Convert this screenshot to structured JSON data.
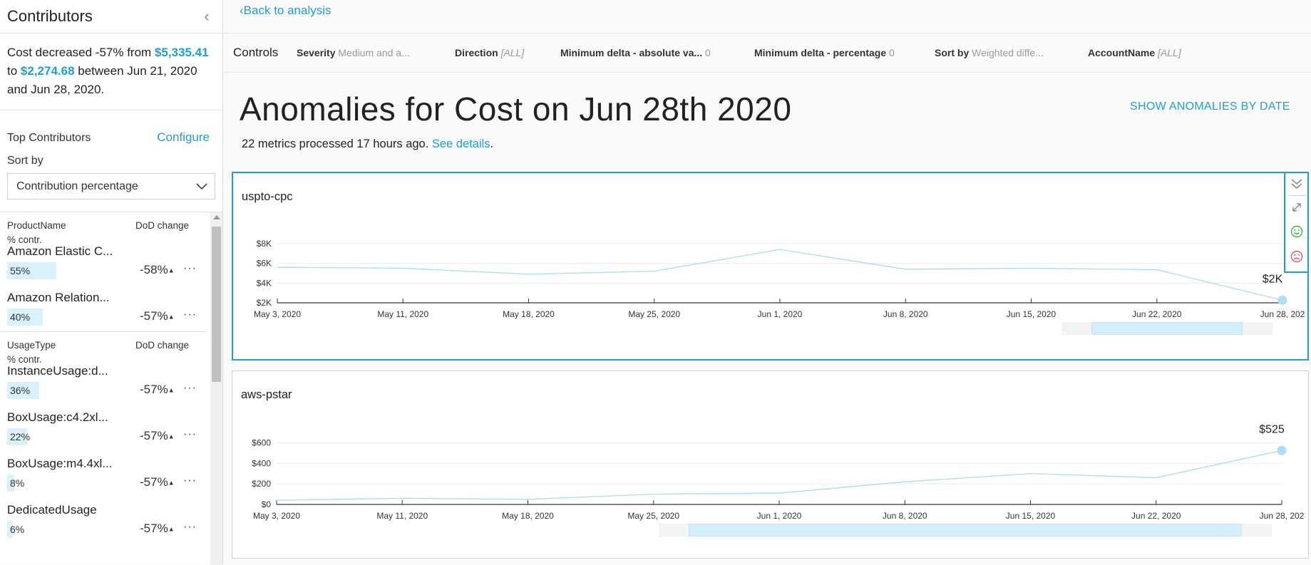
{
  "sidebar": {
    "title": "Contributors",
    "summary": {
      "line1_prefix": "Cost decreased -57% from ",
      "from_value": "$5,335.41",
      "line2_prefix": "to ",
      "to_value": "$2,274.68",
      "line2_suffix": " between Jun 21, 2020",
      "line3": "and Jun 28, 2020."
    },
    "top_contributors_label": "Top Contributors",
    "configure_label": "Configure",
    "sort_by_label": "Sort by",
    "sort_value": "Contribution percentage",
    "groups": [
      {
        "col1": "ProductName",
        "col1_sub": "% contr.",
        "col2": "DoD change",
        "items": [
          {
            "name": "Amazon Elastic C...",
            "pct": "55%",
            "pct_value": 55,
            "change": "-58%"
          },
          {
            "name": "Amazon Relation...",
            "pct": "40%",
            "pct_value": 40,
            "change": "-57%"
          }
        ]
      },
      {
        "col1": "UsageType",
        "col1_sub": "% contr.",
        "col2": "DoD change",
        "items": [
          {
            "name": "InstanceUsage:d...",
            "pct": "36%",
            "pct_value": 36,
            "change": "-57%"
          },
          {
            "name": "BoxUsage:c4.2xl...",
            "pct": "22%",
            "pct_value": 22,
            "change": "-57%"
          },
          {
            "name": "BoxUsage:m4.4xl...",
            "pct": "8%",
            "pct_value": 8,
            "change": "-57%"
          },
          {
            "name": "DedicatedUsage",
            "pct": "6%",
            "pct_value": 6,
            "change": "-57%"
          }
        ]
      }
    ]
  },
  "header": {
    "back_label": "Back to analysis"
  },
  "controls": {
    "title": "Controls",
    "items": [
      {
        "key": "Severity",
        "value": "Medium and a..."
      },
      {
        "key": "Direction",
        "value": "[ALL]"
      },
      {
        "key": "Minimum delta - absolute va...",
        "value": "0"
      },
      {
        "key": "Minimum delta - percentage",
        "value": "0"
      },
      {
        "key": "Sort by",
        "value": "Weighted diffe..."
      },
      {
        "key": "AccountName",
        "value": "[ALL]"
      }
    ]
  },
  "main": {
    "title": "Anomalies for Cost on Jun 28th 2020",
    "show_by_date": "SHOW ANOMALIES BY DATE",
    "subline_text": "22 metrics processed 17 hours ago. ",
    "see_details": "See details",
    "subline_end": "."
  },
  "colors": {
    "accent": "#1a9fd9",
    "line": "#a9e0f3",
    "range_fill": "#d4effb"
  },
  "chart_data": [
    {
      "type": "line",
      "title": "uspto-cpc",
      "x": [
        "May 3, 2020",
        "May 11, 2020",
        "May 18, 2020",
        "May 25, 2020",
        "Jun 1, 2020",
        "Jun 8, 2020",
        "Jun 15, 2020",
        "Jun 22, 2020",
        "Jun 28, 202"
      ],
      "values": [
        5600,
        5500,
        4900,
        5200,
        7400,
        5400,
        5500,
        5350,
        2270
      ],
      "y_ticks": [
        2000,
        4000,
        6000,
        8000
      ],
      "y_tick_labels": [
        "$2K",
        "$4K",
        "$6K",
        "$8K"
      ],
      "ylim": [
        2000,
        9000
      ],
      "end_label": "$2K",
      "range_start": 0.81,
      "range_end": 0.96
    },
    {
      "type": "line",
      "title": "aws-pstar",
      "x": [
        "May 3, 2020",
        "May 11, 2020",
        "May 18, 2020",
        "May 25, 2020",
        "Jun 1, 2020",
        "Jun 8, 2020",
        "Jun 15, 2020",
        "Jun 22, 2020",
        "Jun 28, 202"
      ],
      "values": [
        40,
        60,
        50,
        100,
        110,
        220,
        300,
        260,
        525
      ],
      "y_ticks": [
        0,
        200,
        400,
        600
      ],
      "y_tick_labels": [
        "$0",
        "$200",
        "$400",
        "$600"
      ],
      "ylim": [
        0,
        700
      ],
      "end_label": "$525",
      "range_start": 0.41,
      "range_end": 0.96
    }
  ]
}
